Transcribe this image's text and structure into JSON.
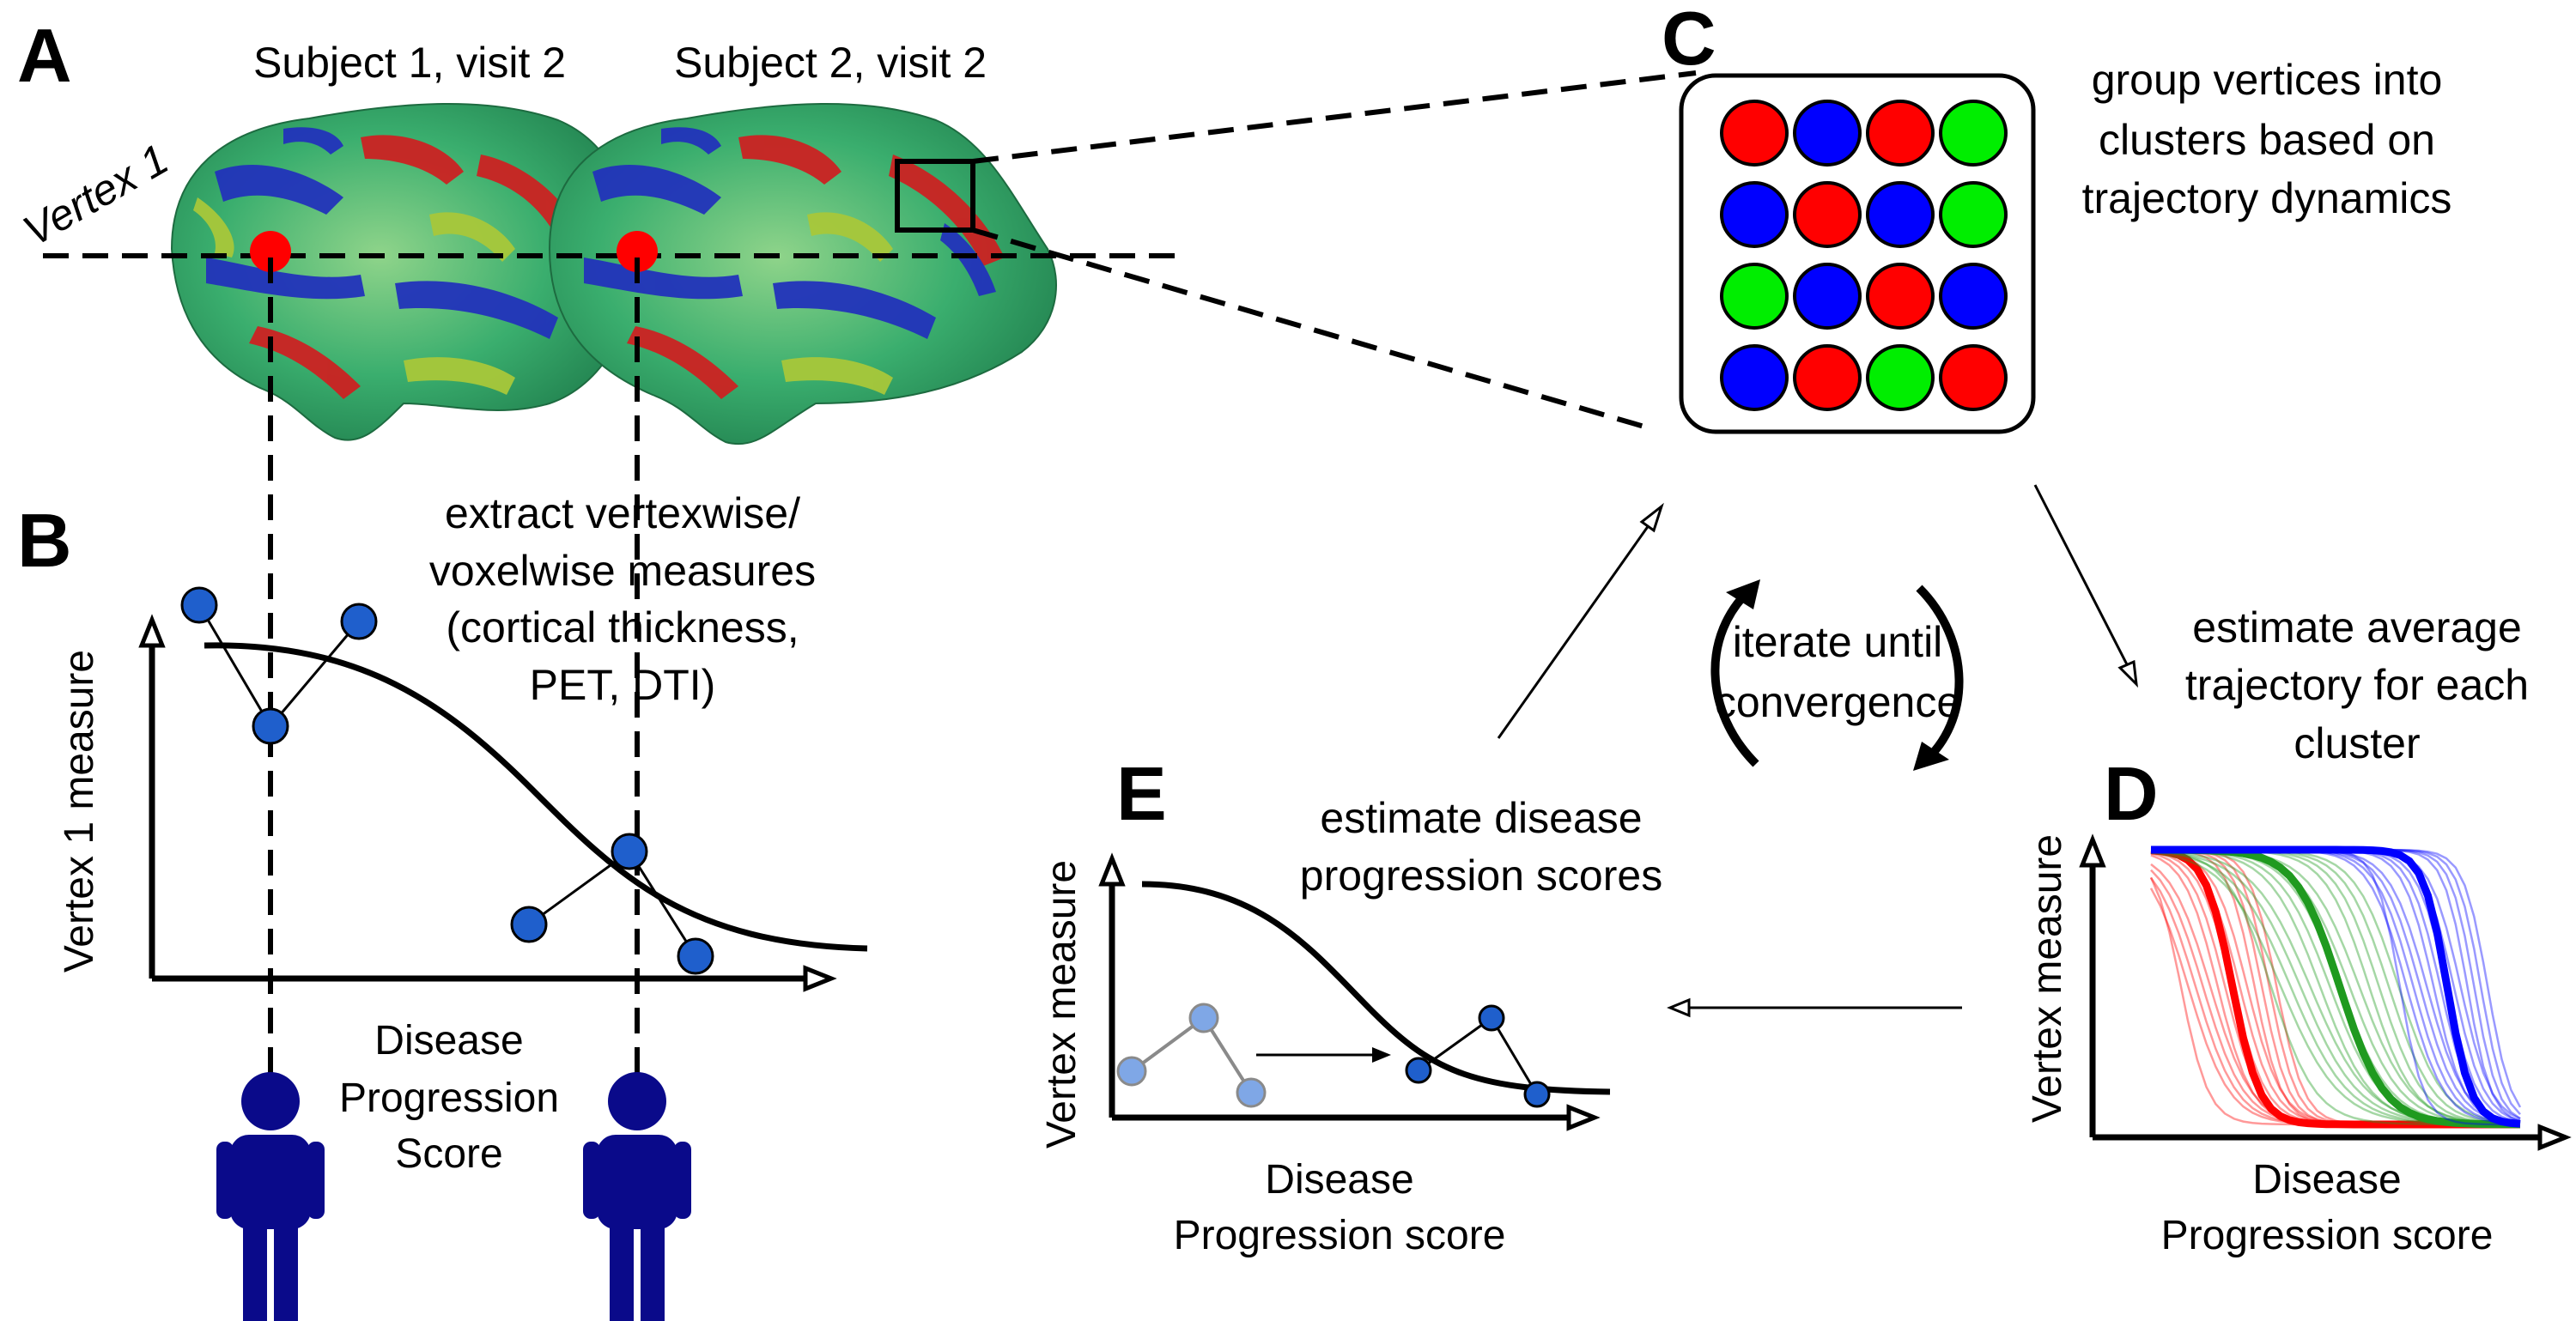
{
  "panels": {
    "A": "A",
    "B": "B",
    "C": "C",
    "D": "D",
    "E": "E"
  },
  "panel_a": {
    "subject1_label": "Subject 1, visit 2",
    "subject2_label": "Subject 2, visit 2",
    "vertex_label": "Vertex 1"
  },
  "panel_b": {
    "extract_text": [
      "extract vertexwise/",
      "voxelwise measures",
      "(cortical thickness,",
      "PET, DTI)"
    ],
    "y_axis": "Vertex 1 measure",
    "x_axis": [
      "Disease",
      "Progression",
      "Score"
    ]
  },
  "panel_c": {
    "text": [
      "group vertices into",
      "clusters based on",
      "trajectory dynamics"
    ],
    "grid_colors": [
      [
        "red",
        "blue",
        "red",
        "green"
      ],
      [
        "blue",
        "red",
        "blue",
        "green"
      ],
      [
        "green",
        "blue",
        "red",
        "blue"
      ],
      [
        "blue",
        "red",
        "green",
        "red"
      ]
    ]
  },
  "panel_d": {
    "text": [
      "estimate average",
      "trajectory for each",
      "cluster"
    ],
    "y_axis": "Vertex measure",
    "x_axis": [
      "Disease",
      "Progression score"
    ]
  },
  "panel_e": {
    "text": [
      "estimate disease",
      "progression scores"
    ],
    "y_axis": "Vertex measure",
    "x_axis": [
      "Disease",
      "Progression score"
    ]
  },
  "center": {
    "iterate_text": [
      "iterate until",
      "convergence"
    ]
  },
  "colors": {
    "red": "#ff0000",
    "blue": "#0000ff",
    "green": "#00ee00",
    "person": "#0a0a8a",
    "point_blue": "#1f5fcc",
    "point_light": "#7fa7e6",
    "brain_green": "#2fa86a"
  }
}
